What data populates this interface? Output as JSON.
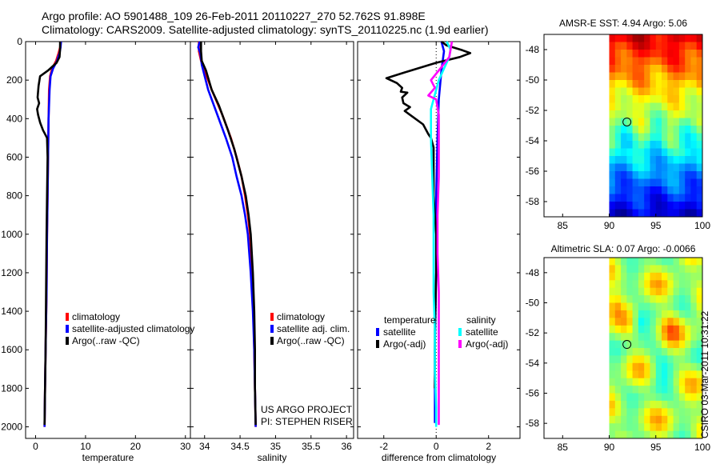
{
  "header": {
    "line1": "Argo profile: AO 5901488_109 26-Feb-2011 20110227_270 52.762S 91.898E",
    "line2": "Climatology: CARS2009. Satellite-adjusted climatology: synTS_20110225.nc (1.9d earlier)"
  },
  "side_stamp": "CSIRO 03-Mar-2011 10:31:22",
  "project_credit": {
    "line1": "US ARGO PROJECT",
    "line2": "PI: STEPHEN RISER"
  },
  "colors": {
    "climatology": "#ff0000",
    "satellite": "#0000ff",
    "argo": "#000000",
    "sat_sal": "#00ffff",
    "argo_sal": "#ff00ff"
  },
  "chart_data": [
    {
      "id": "temperature",
      "type": "line",
      "xlabel": "temperature",
      "ylabel": "",
      "xlim": [
        -2,
        31
      ],
      "ylim": [
        2060,
        0
      ],
      "xticks": [
        0,
        10,
        20,
        30
      ],
      "yticks": [
        0,
        200,
        400,
        600,
        800,
        1000,
        1200,
        1400,
        1600,
        1800,
        2000
      ],
      "legend": [
        "climatology",
        "satellite-adjusted climatology",
        "Argo(..raw -QC)"
      ],
      "series": [
        {
          "name": "climatology",
          "color": "#ff0000",
          "points": [
            [
              5.0,
              0
            ],
            [
              4.9,
              30
            ],
            [
              4.6,
              60
            ],
            [
              4.1,
              100
            ],
            [
              3.3,
              140
            ],
            [
              2.9,
              180
            ],
            [
              2.7,
              250
            ],
            [
              2.6,
              400
            ],
            [
              2.5,
              600
            ],
            [
              2.4,
              800
            ],
            [
              2.3,
              1000
            ],
            [
              2.2,
              1300
            ],
            [
              2.0,
              1600
            ],
            [
              1.9,
              1800
            ],
            [
              1.8,
              2000
            ]
          ]
        },
        {
          "name": "satellite-adjusted climatology",
          "color": "#0000ff",
          "points": [
            [
              5.1,
              0
            ],
            [
              5.0,
              30
            ],
            [
              4.8,
              60
            ],
            [
              4.3,
              100
            ],
            [
              3.5,
              140
            ],
            [
              3.0,
              180
            ],
            [
              2.8,
              250
            ],
            [
              2.6,
              400
            ],
            [
              2.5,
              600
            ],
            [
              2.4,
              800
            ],
            [
              2.3,
              1000
            ],
            [
              2.2,
              1300
            ],
            [
              2.0,
              1600
            ],
            [
              1.9,
              1800
            ],
            [
              1.8,
              2000
            ]
          ]
        },
        {
          "name": "Argo(..raw -QC)",
          "color": "#000000",
          "points": [
            [
              4.9,
              0
            ],
            [
              4.9,
              40
            ],
            [
              4.8,
              80
            ],
            [
              4.2,
              110
            ],
            [
              2.5,
              150
            ],
            [
              0.9,
              180
            ],
            [
              0.6,
              230
            ],
            [
              0.4,
              290
            ],
            [
              0.7,
              320
            ],
            [
              0.3,
              350
            ],
            [
              0.5,
              380
            ],
            [
              0.9,
              420
            ],
            [
              1.5,
              460
            ],
            [
              2.3,
              500
            ],
            [
              2.4,
              600
            ],
            [
              2.3,
              800
            ],
            [
              2.2,
              1000
            ],
            [
              2.1,
              1300
            ],
            [
              2.0,
              1600
            ],
            [
              1.9,
              1800
            ],
            [
              1.8,
              1990
            ]
          ]
        }
      ]
    },
    {
      "id": "salinity",
      "type": "line",
      "xlabel": "salinity",
      "ylabel": "",
      "xlim": [
        33.8,
        36.1
      ],
      "ylim": [
        2060,
        0
      ],
      "xticks": [
        34,
        34.5,
        35,
        35.5,
        36
      ],
      "xtick_labels": [
        "34",
        "34.5",
        "35",
        "35.5",
        "36"
      ],
      "legend": [
        "climatology",
        "satellite adj. clim.",
        "Argo(..raw -QC)"
      ],
      "series": [
        {
          "name": "climatology",
          "color": "#ff0000",
          "points": [
            [
              33.92,
              0
            ],
            [
              33.92,
              50
            ],
            [
              33.95,
              100
            ],
            [
              34.0,
              150
            ],
            [
              34.1,
              250
            ],
            [
              34.25,
              380
            ],
            [
              34.37,
              500
            ],
            [
              34.45,
              600
            ],
            [
              34.52,
              700
            ],
            [
              34.57,
              800
            ],
            [
              34.61,
              900
            ],
            [
              34.64,
              1000
            ],
            [
              34.67,
              1200
            ],
            [
              34.69,
              1400
            ],
            [
              34.7,
              1600
            ],
            [
              34.71,
              1800
            ],
            [
              34.72,
              2000
            ]
          ]
        },
        {
          "name": "satellite adj. clim.",
          "color": "#0000ff",
          "points": [
            [
              33.93,
              0
            ],
            [
              33.91,
              30
            ],
            [
              33.94,
              60
            ],
            [
              33.96,
              120
            ],
            [
              34.05,
              250
            ],
            [
              34.18,
              380
            ],
            [
              34.3,
              500
            ],
            [
              34.39,
              600
            ],
            [
              34.45,
              700
            ],
            [
              34.52,
              800
            ],
            [
              34.57,
              900
            ],
            [
              34.61,
              1000
            ],
            [
              34.65,
              1200
            ],
            [
              34.68,
              1400
            ],
            [
              34.7,
              1600
            ],
            [
              34.71,
              1800
            ],
            [
              34.72,
              2000
            ]
          ]
        },
        {
          "name": "Argo(..raw -QC)",
          "color": "#000000",
          "points": [
            [
              33.95,
              0
            ],
            [
              33.95,
              50
            ],
            [
              33.96,
              100
            ],
            [
              34.02,
              150
            ],
            [
              34.1,
              250
            ],
            [
              34.2,
              330
            ],
            [
              34.33,
              460
            ],
            [
              34.42,
              560
            ],
            [
              34.52,
              700
            ],
            [
              34.58,
              800
            ],
            [
              34.62,
              900
            ],
            [
              34.65,
              1000
            ],
            [
              34.68,
              1200
            ],
            [
              34.7,
              1400
            ],
            [
              34.71,
              1600
            ],
            [
              34.71,
              1800
            ],
            [
              34.72,
              1990
            ]
          ]
        }
      ]
    },
    {
      "id": "difference",
      "type": "line",
      "xlabel": "difference from climatology",
      "ylabel": "",
      "xlim": [
        -3,
        3.2
      ],
      "ylim": [
        2060,
        0
      ],
      "xticks": [
        -2,
        0,
        2
      ],
      "legend": [
        "temperature",
        "satellite",
        "Argo(-adj)",
        "salinity",
        "satellite",
        "Argo(-adj)"
      ],
      "series": [
        {
          "name": "temperature satellite",
          "color": "#0000ff",
          "points": [
            [
              0.2,
              0
            ],
            [
              0.3,
              50
            ],
            [
              0.2,
              150
            ],
            [
              0.1,
              300
            ],
            [
              0.05,
              500
            ],
            [
              0,
              800
            ],
            [
              0,
              1200
            ],
            [
              -0.05,
              1600
            ],
            [
              -0.05,
              1980
            ]
          ]
        },
        {
          "name": "temperature Argo(-adj)",
          "color": "#000000",
          "points": [
            [
              0.2,
              0
            ],
            [
              0.4,
              20
            ],
            [
              1.0,
              45
            ],
            [
              1.3,
              60
            ],
            [
              0.9,
              80
            ],
            [
              0,
              110
            ],
            [
              -1.2,
              160
            ],
            [
              -1.9,
              190
            ],
            [
              -1.5,
              215
            ],
            [
              -1.3,
              240
            ],
            [
              -1.35,
              260
            ],
            [
              -1.1,
              265
            ],
            [
              -1.3,
              290
            ],
            [
              -1.25,
              320
            ],
            [
              -1.0,
              340
            ],
            [
              -1.2,
              360
            ],
            [
              -0.9,
              390
            ],
            [
              -0.5,
              430
            ],
            [
              -0.3,
              480
            ],
            [
              -0.2,
              500
            ],
            [
              -0.1,
              550
            ],
            [
              -0.1,
              700
            ],
            [
              -0.1,
              800
            ],
            [
              0,
              1000
            ],
            [
              0,
              1200
            ],
            [
              -0.05,
              1500
            ],
            [
              -0.05,
              1800
            ]
          ]
        },
        {
          "name": "salinity satellite",
          "color": "#00ffff",
          "points": [
            [
              0.4,
              0
            ],
            [
              0.55,
              40
            ],
            [
              0.5,
              80
            ],
            [
              0.3,
              140
            ],
            [
              0.1,
              200
            ],
            [
              -0.2,
              350
            ],
            [
              -0.2,
              500
            ],
            [
              -0.15,
              700
            ],
            [
              -0.1,
              900
            ],
            [
              -0.1,
              1100
            ],
            [
              -0.1,
              1300
            ],
            [
              -0.05,
              1500
            ],
            [
              -0.05,
              1700
            ],
            [
              0,
              1900
            ],
            [
              0,
              2000
            ]
          ]
        },
        {
          "name": "salinity Argo(-adj)",
          "color": "#ff00ff",
          "points": [
            [
              0.6,
              0
            ],
            [
              0.5,
              80
            ],
            [
              0.1,
              150
            ],
            [
              -0.2,
              200
            ],
            [
              -0.05,
              240
            ],
            [
              -0.3,
              280
            ],
            [
              0,
              300
            ],
            [
              0.1,
              380
            ],
            [
              0.1,
              500
            ],
            [
              0.1,
              700
            ],
            [
              0.05,
              900
            ],
            [
              0.05,
              1100
            ],
            [
              0.1,
              1300
            ],
            [
              0.1,
              1600
            ],
            [
              0.1,
              1800
            ],
            [
              0.1,
              1990
            ]
          ]
        }
      ]
    },
    {
      "id": "sst_map",
      "type": "heatmap",
      "title": "AMSR-E SST: 4.94 Argo: 5.06",
      "xlim": [
        83,
        100
      ],
      "ylim": [
        -59,
        -47
      ],
      "xticks": [
        85,
        90,
        95,
        100
      ],
      "yticks": [
        -48,
        -50,
        -52,
        -54,
        -56,
        -58
      ],
      "data_xlim": [
        90,
        100
      ],
      "marker": [
        91.898,
        -52.762
      ]
    },
    {
      "id": "sla_map",
      "type": "heatmap",
      "title": "Altimetric SLA: 0.07 Argo: -0.0066",
      "xlim": [
        83,
        100
      ],
      "ylim": [
        -59,
        -47
      ],
      "xticks": [
        85,
        90,
        95,
        100
      ],
      "yticks": [
        -48,
        -50,
        -52,
        -54,
        -56,
        -58
      ],
      "data_xlim": [
        90,
        100
      ],
      "marker": [
        91.898,
        -52.762
      ]
    }
  ]
}
